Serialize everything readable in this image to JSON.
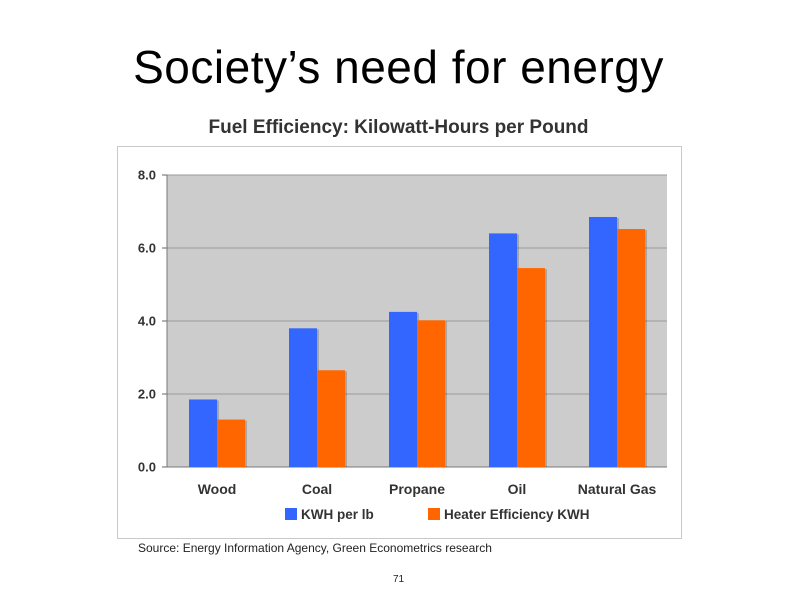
{
  "slide": {
    "title": "Society’s need for energy",
    "page_number": "71"
  },
  "source": "Source: Energy Information Agency, Green Econometrics research",
  "colors": {
    "kwh": "#3366ff",
    "heater": "#ff6600",
    "plot_bg": "#cccccc",
    "grid": "#9a9a9a"
  },
  "chart_data": {
    "type": "bar",
    "title": "Fuel Efficiency: Kilowatt-Hours per Pound",
    "xlabel": "",
    "ylabel": "",
    "categories": [
      "Wood",
      "Coal",
      "Propane",
      "Oil",
      "Natural Gas"
    ],
    "series": [
      {
        "name": "KWH per lb",
        "values": [
          1.85,
          3.8,
          4.25,
          6.4,
          6.85
        ]
      },
      {
        "name": "Heater Efficiency KWH",
        "values": [
          1.3,
          2.65,
          4.02,
          5.45,
          6.52
        ]
      }
    ],
    "ylim": [
      0,
      8
    ],
    "yticks": [
      "0.0",
      "2.0",
      "4.0",
      "6.0",
      "8.0"
    ],
    "ytick_values": [
      0,
      2,
      4,
      6,
      8
    ],
    "grid": true,
    "legend_position": "bottom"
  }
}
